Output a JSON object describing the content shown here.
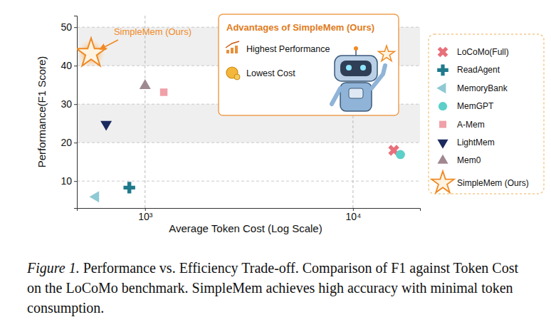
{
  "chart_data": {
    "type": "scatter",
    "x_label": "Average Token Cost (Log Scale)",
    "y_label": "Performance(F1 Score)",
    "xlim": [
      470,
      21000
    ],
    "ylim": [
      3,
      53
    ],
    "xticks": [
      {
        "value": 1000,
        "label": "10³"
      },
      {
        "value": 10000,
        "label": "10⁴"
      }
    ],
    "yticks": [
      10,
      20,
      30,
      40,
      50
    ],
    "log": "x",
    "grid": true,
    "legend": "right",
    "series": [
      {
        "name": "LoCoMo(Full)",
        "color": "#e8707a",
        "marker": "x",
        "x": [
          15700
        ],
        "values": [
          18.0
        ]
      },
      {
        "name": "ReadAgent",
        "color": "#1f7a8c",
        "marker": "plus",
        "x": [
          840
        ],
        "values": [
          8.3
        ]
      },
      {
        "name": "MemoryBank",
        "color": "#8fc9d4",
        "marker": "triangle-left",
        "x": [
          580
        ],
        "values": [
          5.9
        ]
      },
      {
        "name": "MemGPT",
        "color": "#5ccfc8",
        "marker": "circle",
        "x": [
          16900
        ],
        "values": [
          16.9
        ]
      },
      {
        "name": "A-Mem",
        "color": "#f0a0a8",
        "marker": "square",
        "x": [
          1230
        ],
        "values": [
          33.1
        ]
      },
      {
        "name": "LightMem",
        "color": "#1a2a5e",
        "marker": "triangle-down",
        "x": [
          650
        ],
        "values": [
          24.8
        ]
      },
      {
        "name": "Mem0",
        "color": "#a08890",
        "marker": "triangle-up",
        "x": [
          1000
        ],
        "values": [
          34.8
        ]
      },
      {
        "name": "SimpleMem (Ours)",
        "color": "#f08a24",
        "marker": "star",
        "x": [
          550
        ],
        "values": [
          43.2
        ]
      }
    ],
    "annotation": "SimpleMem (Ours)",
    "callout": {
      "title": "Advantages of SimpleMem (Ours)",
      "items": [
        "Highest Performance",
        "Lowest Cost"
      ]
    },
    "caption": {
      "label": "Figure 1.",
      "text": "Performance vs. Efficiency Trade-off. Comparison of F1 against Token Cost on the LoCoMo benchmark. SimpleMem achieves high accuracy with minimal token consumption."
    }
  }
}
